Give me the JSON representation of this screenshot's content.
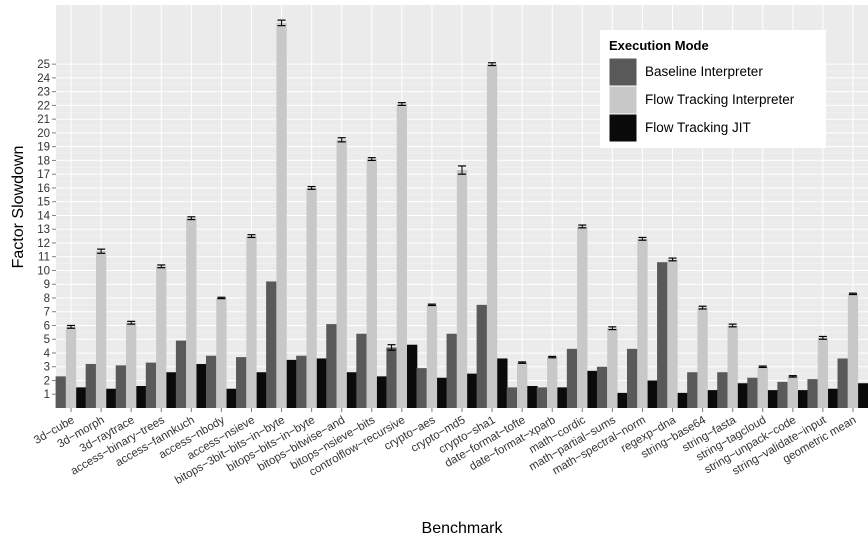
{
  "chart_data": {
    "type": "bar",
    "xlabel": "Benchmark",
    "ylabel": "Factor Slowdown",
    "ylim": [
      0,
      29.3
    ],
    "yticks": [
      1,
      2,
      3,
      4,
      5,
      6,
      7,
      8,
      9,
      10,
      11,
      12,
      13,
      14,
      15,
      16,
      17,
      18,
      19,
      20,
      21,
      22,
      23,
      24,
      25
    ],
    "grid": true,
    "background": "#ebebeb",
    "legend": {
      "title": "Execution Mode",
      "placement": "top-right"
    },
    "categories": [
      "3d−cube",
      "3d−morph",
      "3d−raytrace",
      "access−binary−trees",
      "access−fannkuch",
      "access−nbody",
      "access−nsieve",
      "bitops−3bit−bits−in−byte",
      "bitops−bits−in−byte",
      "bitops−bitwise−and",
      "bitops−nsieve−bits",
      "controlflow−recursive",
      "crypto−aes",
      "crypto−md5",
      "crypto−sha1",
      "date−format−tofte",
      "date−format−xparb",
      "math−cordic",
      "math−partial−sums",
      "math−spectral−norm",
      "regexp−dna",
      "string−base64",
      "string−fasta",
      "string−tagcloud",
      "string−unpack−code",
      "string−validate−input",
      "geometric mean"
    ],
    "series": [
      {
        "name": "Baseline Interpreter",
        "color": "#595959",
        "values": [
          2.3,
          3.2,
          3.1,
          3.3,
          4.9,
          3.8,
          3.7,
          9.2,
          3.8,
          6.1,
          5.4,
          4.4,
          2.9,
          5.4,
          7.5,
          1.5,
          1.5,
          4.3,
          3.0,
          4.3,
          10.6,
          2.6,
          2.6,
          2.2,
          1.9,
          2.1,
          3.6
        ]
      },
      {
        "name": "Flow Tracking Interpreter",
        "color": "#c8c8c8",
        "values": [
          5.9,
          11.4,
          6.2,
          10.3,
          13.8,
          8.0,
          12.5,
          28.0,
          16.0,
          19.5,
          18.1,
          22.1,
          7.5,
          17.3,
          25.0,
          3.3,
          3.7,
          13.2,
          5.8,
          12.3,
          10.8,
          7.3,
          6.0,
          3.0,
          2.3,
          5.1,
          8.3
        ]
      },
      {
        "name": "Flow Tracking JIT",
        "color": "#0a0a0a",
        "values": [
          1.5,
          1.4,
          1.6,
          2.6,
          3.2,
          1.4,
          2.6,
          3.5,
          3.6,
          2.6,
          2.3,
          4.6,
          2.2,
          2.5,
          3.6,
          1.6,
          1.5,
          2.7,
          1.1,
          2.0,
          1.1,
          1.3,
          1.8,
          1.3,
          1.3,
          1.4,
          1.8
        ]
      }
    ],
    "error_bars": {
      "series": "Flow Tracking Interpreter",
      "values": [
        0.1,
        0.15,
        0.1,
        0.1,
        0.1,
        0.05,
        0.1,
        0.2,
        0.1,
        0.15,
        0.1,
        0.1,
        0.05,
        0.3,
        0.1,
        0.05,
        0.05,
        0.1,
        0.1,
        0.1,
        0.1,
        0.1,
        0.1,
        0.05,
        0.05,
        0.1,
        0.05
      ]
    },
    "error_bars_baseline": {
      "index": 11,
      "value": 0.2
    }
  }
}
